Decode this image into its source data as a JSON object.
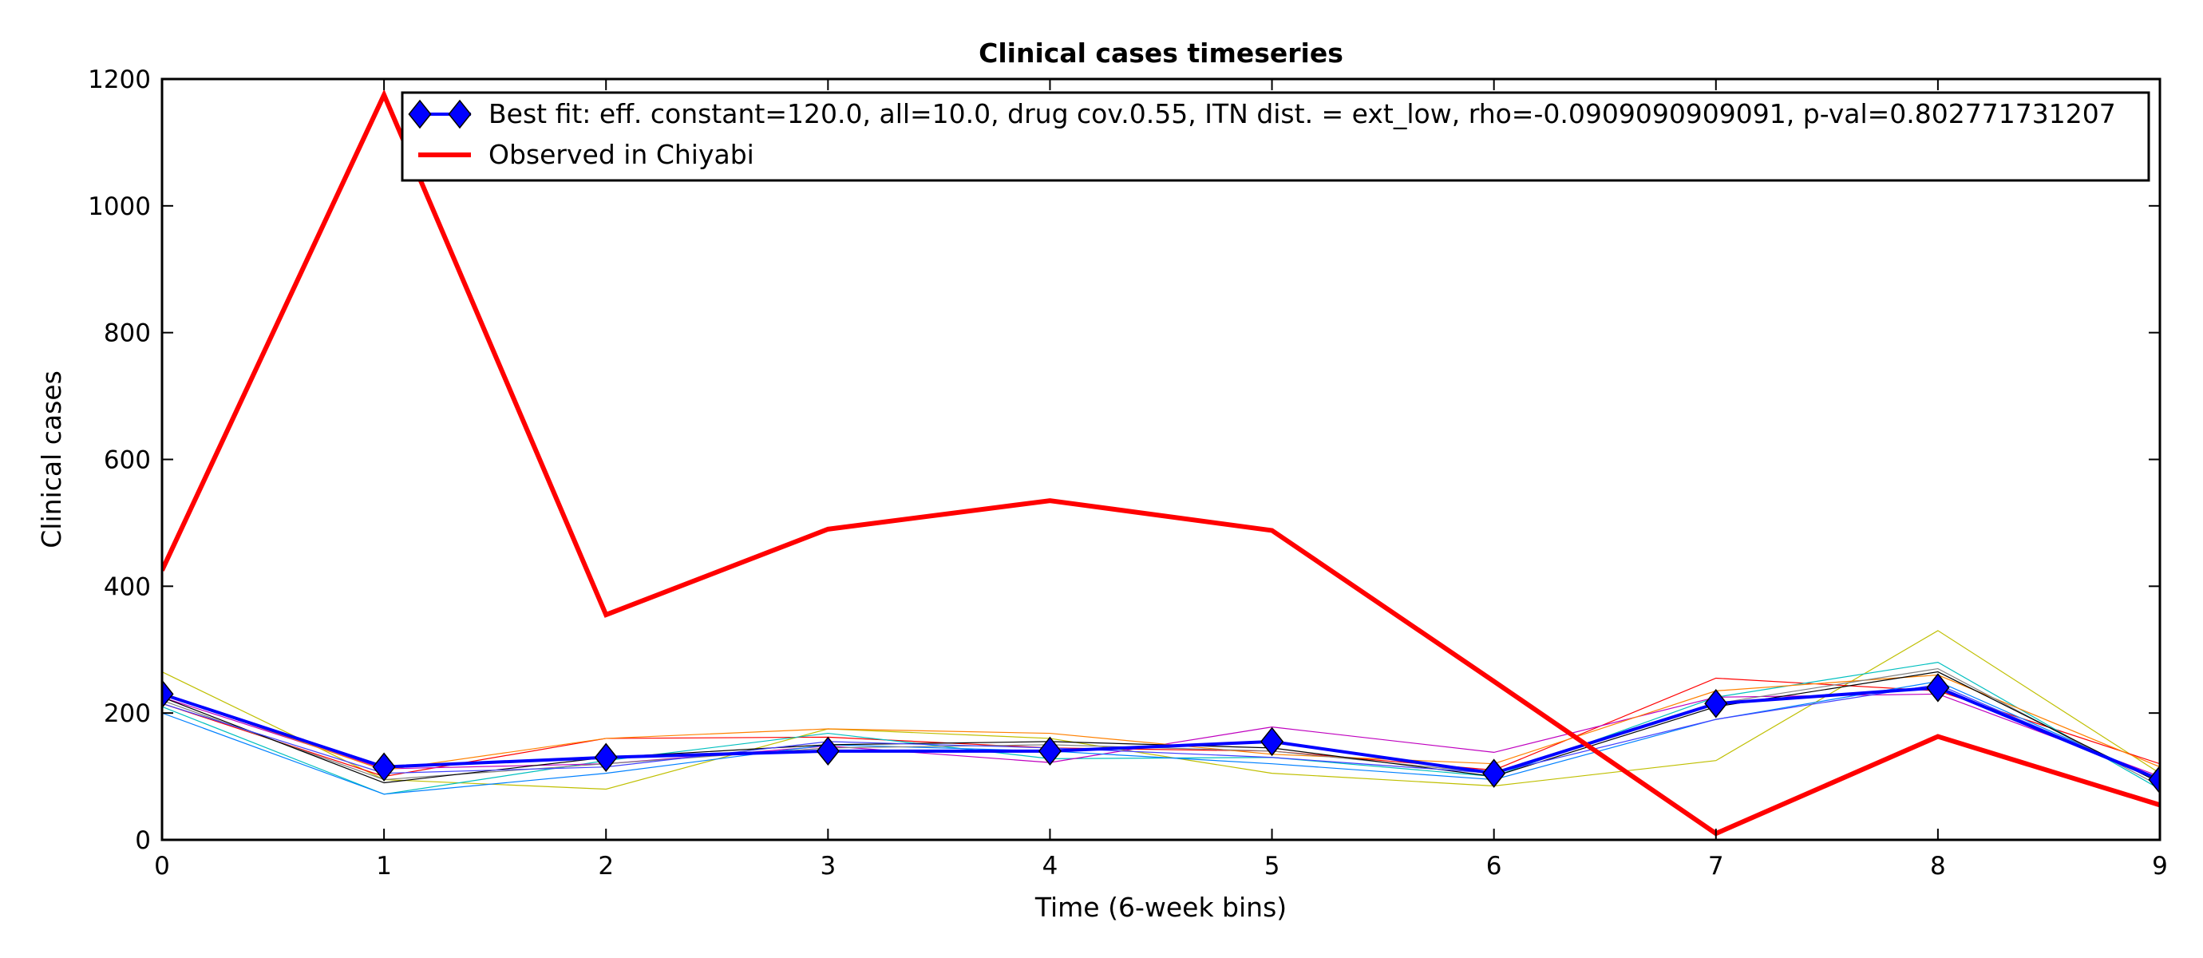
{
  "chart_data": {
    "type": "line",
    "title": "Clinical cases timeseries",
    "xlabel": "Time (6-week bins)",
    "ylabel": "Clinical cases",
    "xlim": [
      0,
      9
    ],
    "ylim": [
      0,
      1200
    ],
    "xticks": [
      "0",
      "1",
      "2",
      "3",
      "4",
      "5",
      "6",
      "7",
      "8",
      "9"
    ],
    "yticks": [
      "0",
      "200",
      "400",
      "600",
      "800",
      "1000",
      "1200"
    ],
    "grid": false,
    "legend_position": "top-right",
    "x": [
      0,
      1,
      2,
      3,
      4,
      5,
      6,
      7,
      8,
      9
    ],
    "legend": [
      {
        "label": "Best fit: eff. constant=120.0, all=10.0, drug cov.0.55, ITN dist. = ext_low, rho=-0.0909090909091, p-val=0.802771731207",
        "color": "#0000ff",
        "marker": "diamond"
      },
      {
        "label": "Observed in Chiyabi",
        "color": "#ff0000",
        "marker": "none"
      }
    ],
    "series": [
      {
        "values": [
          265,
          95,
          80,
          175,
          160,
          105,
          85,
          125,
          330,
          105
        ],
        "color": "#bfbf00",
        "width": 1.2
      },
      {
        "values": [
          215,
          100,
          160,
          162,
          145,
          140,
          110,
          255,
          235,
          120
        ],
        "color": "#ff0000",
        "width": 1.2
      },
      {
        "values": [
          210,
          72,
          125,
          168,
          128,
          130,
          100,
          225,
          280,
          80
        ],
        "color": "#00bfbf",
        "width": 1.2
      },
      {
        "values": [
          225,
          112,
          120,
          148,
          122,
          178,
          138,
          225,
          230,
          100
        ],
        "color": "#bf00bf",
        "width": 1.2
      },
      {
        "values": [
          200,
          72,
          105,
          150,
          140,
          120,
          95,
          190,
          250,
          95
        ],
        "color": "#0080ff",
        "width": 1.2
      },
      {
        "values": [
          230,
          110,
          160,
          175,
          168,
          135,
          120,
          235,
          260,
          115
        ],
        "color": "#ff8000",
        "width": 1.2
      },
      {
        "values": [
          220,
          95,
          120,
          145,
          150,
          140,
          105,
          215,
          270,
          85
        ],
        "color": "#808080",
        "width": 1.2
      },
      {
        "values": [
          225,
          90,
          130,
          150,
          155,
          145,
          100,
          210,
          265,
          90
        ],
        "color": "#000000",
        "width": 1.2
      },
      {
        "values": [
          215,
          105,
          115,
          155,
          145,
          130,
          105,
          190,
          245,
          95
        ],
        "color": "#4040ff",
        "width": 1.2
      },
      {
        "name": "Best fit: eff. constant=120.0, all=10.0, drug cov.0.55, ITN dist. = ext_low, rho=-0.0909090909091, p-val=0.802771731207",
        "values": [
          230,
          115,
          130,
          140,
          140,
          155,
          105,
          215,
          240,
          95
        ],
        "color": "#0000ff",
        "width": 4,
        "marker": "diamond"
      },
      {
        "name": "Observed in Chiyabi",
        "values": [
          425,
          1175,
          355,
          490,
          535,
          488,
          250,
          10,
          163,
          55
        ],
        "color": "#ff0000",
        "width": 6
      }
    ]
  }
}
